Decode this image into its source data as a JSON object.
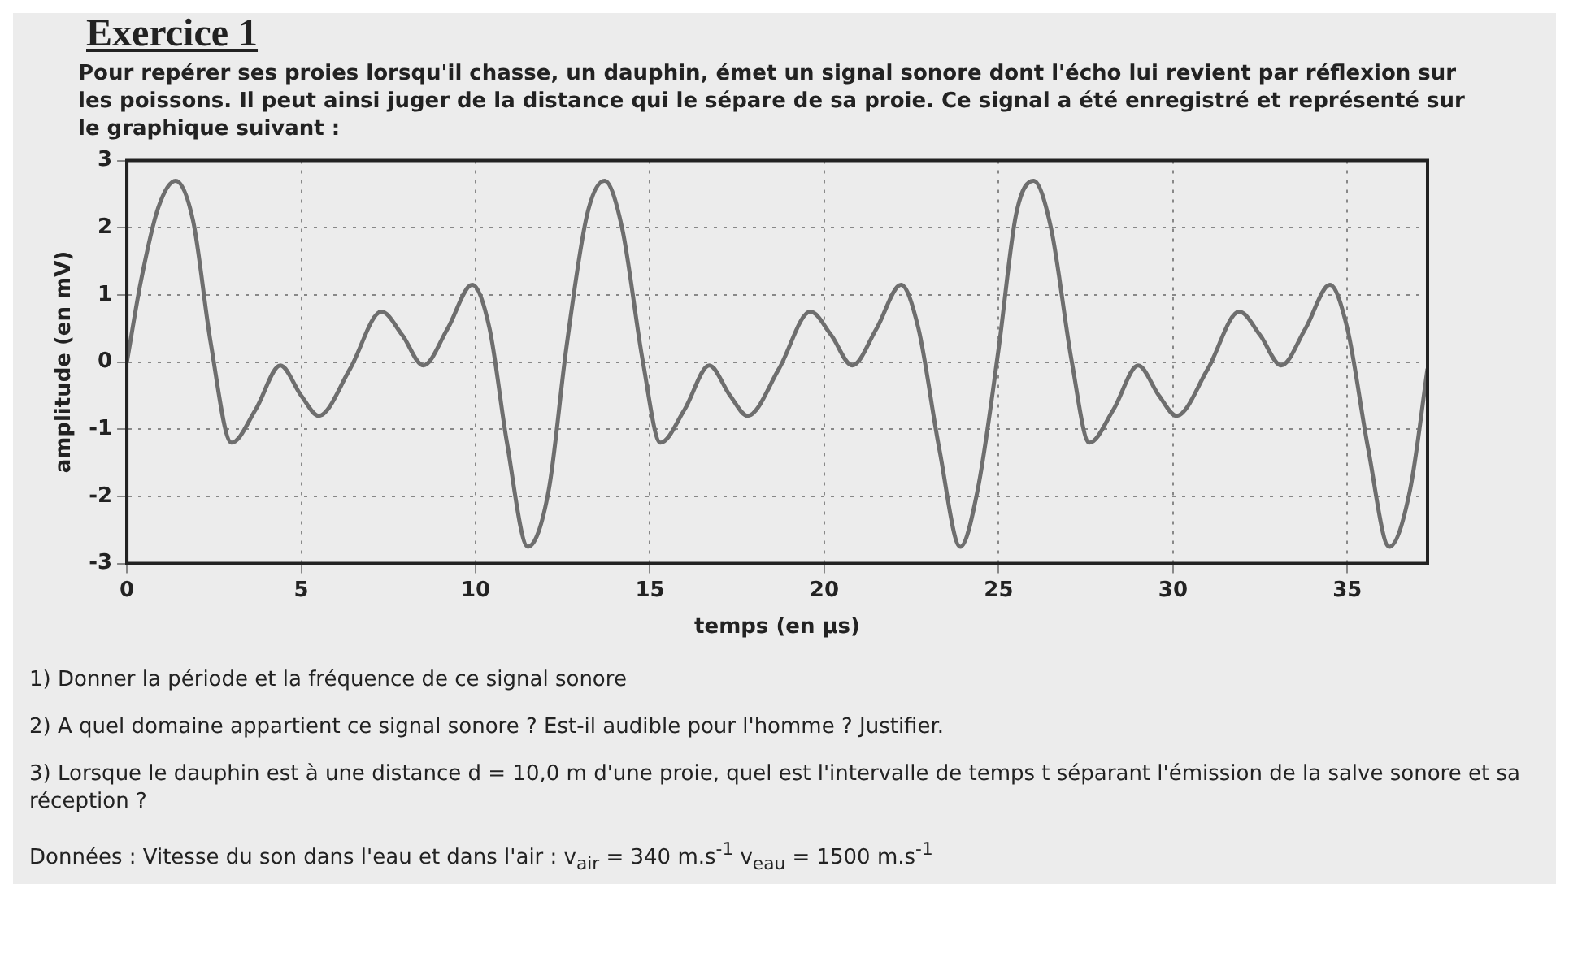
{
  "chart_data": {
    "type": "line",
    "title": "Exercice 1",
    "subtitle": "Pour repérer ses proies lorsqu'il chasse, un dauphin, émet un signal sonore dont l'écho lui revient par réflexion sur les poissons. Il peut ainsi juger de la distance qui le sépare de sa proie. Ce signal a été enregistré et représenté sur le graphique suivant :",
    "xlabel": "temps (en µs)",
    "ylabel": "amplitude (en mV)",
    "x": [
      0,
      0.4,
      0.9,
      1.4,
      1.9,
      2.4,
      3.0,
      3.7,
      4.4,
      5.0,
      5.5,
      6.4,
      7.3,
      7.9,
      8.5,
      9.2,
      9.9,
      10.4,
      10.9,
      11.5,
      12.1,
      12.6,
      13.2,
      13.7,
      14.2,
      14.8,
      15.3,
      16.0,
      16.7,
      17.3,
      17.8,
      18.7,
      19.6,
      20.2,
      20.8,
      21.5,
      22.2,
      22.7,
      23.3,
      23.9,
      24.4,
      25.0,
      25.5,
      26.0,
      26.5,
      27.1,
      27.6,
      28.3,
      29.0,
      29.6,
      30.1,
      31.0,
      31.9,
      32.5,
      33.1,
      33.8,
      34.5,
      35.0,
      35.6,
      36.2,
      36.8,
      37.3
    ],
    "series": [
      {
        "color": "#6e6e6e",
        "values": [
          0,
          1.2,
          2.3,
          2.7,
          2.1,
          0.3,
          -1.2,
          -0.7,
          -0.05,
          -0.5,
          -0.8,
          -0.1,
          0.75,
          0.4,
          -0.05,
          0.5,
          1.15,
          0.5,
          -1.2,
          -2.75,
          -1.9,
          0.2,
          2.2,
          2.7,
          2.0,
          0,
          -1.2,
          -0.7,
          -0.05,
          -0.5,
          -0.8,
          -0.1,
          0.75,
          0.4,
          -0.05,
          0.5,
          1.15,
          0.5,
          -1.3,
          -2.75,
          -1.9,
          0.2,
          2.2,
          2.7,
          2.0,
          0,
          -1.2,
          -0.7,
          -0.05,
          -0.5,
          -0.8,
          -0.1,
          0.75,
          0.4,
          -0.05,
          0.5,
          1.15,
          0.5,
          -1.3,
          -2.75,
          -1.9,
          -0.1
        ]
      }
    ],
    "xlim": [
      0,
      37.3
    ],
    "xticks": [
      0,
      5,
      10,
      15,
      20,
      25,
      30,
      35
    ],
    "ylim": [
      -3,
      3
    ],
    "yticks": [
      -3,
      -2,
      -1,
      0,
      1,
      2,
      3
    ],
    "grid": true,
    "line_style": "solid",
    "marker": "none",
    "annotations": [
      "1) Donner la période et la fréquence de ce signal sonore",
      "2) A quel domaine appartient ce signal sonore ? Est-il audible pour l'homme ? Justifier.",
      "3) Lorsque le dauphin est à une distance d = 10,0 m d'une proie, quel est l'intervalle de temps t séparant l'émission de la salve sonore et sa réception ?",
      "Données : Vitesse du son dans l'eau et dans l'air : v$_{air}$ = 340 m.s$^{-1}$  v$_{eau}$ = 1500 m.s$^{-1}$"
    ]
  }
}
